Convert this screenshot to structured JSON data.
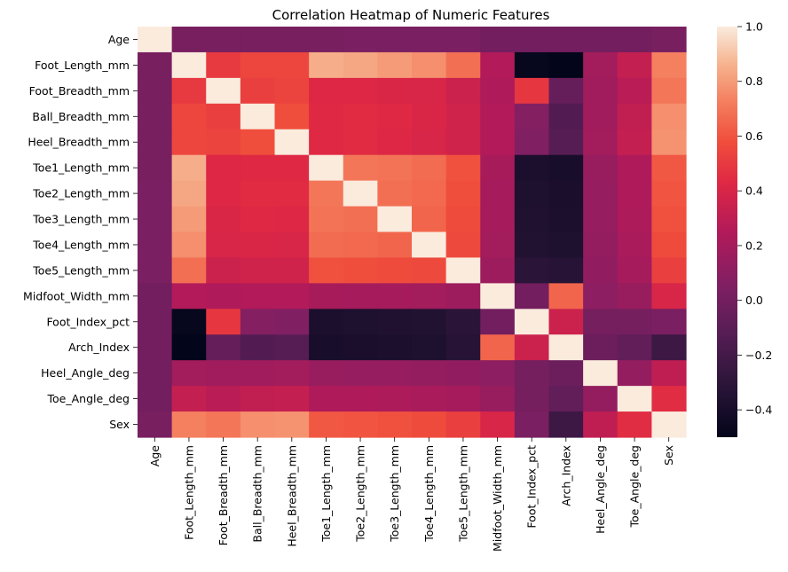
{
  "chart_data": {
    "type": "heatmap",
    "title": "Correlation Heatmap of Numeric Features",
    "xlabel": "",
    "ylabel": "",
    "labels": [
      "Age",
      "Foot_Length_mm",
      "Foot_Breadth_mm",
      "Ball_Breadth_mm",
      "Heel_Breadth_mm",
      "Toe1_Length_mm",
      "Toe2_Length_mm",
      "Toe3_Length_mm",
      "Toe4_Length_mm",
      "Toe5_Length_mm",
      "Midfoot_Width_mm",
      "Foot_Index_pct",
      "Arch_Index",
      "Heel_Angle_deg",
      "Toe_Angle_deg",
      "Sex"
    ],
    "values": [
      [
        1.0,
        0.02,
        0.02,
        0.02,
        0.02,
        0.02,
        0.03,
        0.03,
        0.03,
        0.03,
        0.0,
        0.0,
        0.0,
        0.0,
        0.0,
        0.02
      ],
      [
        0.02,
        1.0,
        0.5,
        0.55,
        0.55,
        0.85,
        0.83,
        0.8,
        0.77,
        0.68,
        0.25,
        -0.48,
        -0.52,
        0.19,
        0.32,
        0.73
      ],
      [
        0.02,
        0.5,
        1.0,
        0.52,
        0.54,
        0.42,
        0.42,
        0.41,
        0.4,
        0.35,
        0.24,
        0.49,
        -0.06,
        0.18,
        0.28,
        0.7
      ],
      [
        0.02,
        0.55,
        0.52,
        1.0,
        0.58,
        0.43,
        0.44,
        0.43,
        0.41,
        0.37,
        0.25,
        0.07,
        -0.14,
        0.18,
        0.31,
        0.77
      ],
      [
        0.02,
        0.55,
        0.54,
        0.58,
        1.0,
        0.43,
        0.44,
        0.42,
        0.4,
        0.37,
        0.25,
        0.06,
        -0.12,
        0.19,
        0.32,
        0.78
      ],
      [
        0.02,
        0.85,
        0.42,
        0.43,
        0.43,
        1.0,
        0.7,
        0.69,
        0.67,
        0.59,
        0.21,
        -0.38,
        -0.4,
        0.15,
        0.24,
        0.61
      ],
      [
        0.03,
        0.83,
        0.42,
        0.44,
        0.44,
        0.7,
        1.0,
        0.68,
        0.66,
        0.58,
        0.2,
        -0.37,
        -0.39,
        0.14,
        0.24,
        0.6
      ],
      [
        0.03,
        0.8,
        0.41,
        0.43,
        0.42,
        0.69,
        0.68,
        1.0,
        0.65,
        0.57,
        0.2,
        -0.36,
        -0.38,
        0.14,
        0.23,
        0.59
      ],
      [
        0.03,
        0.77,
        0.4,
        0.41,
        0.4,
        0.67,
        0.66,
        0.65,
        1.0,
        0.56,
        0.19,
        -0.35,
        -0.37,
        0.13,
        0.22,
        0.57
      ],
      [
        0.03,
        0.68,
        0.35,
        0.37,
        0.37,
        0.59,
        0.58,
        0.57,
        0.56,
        1.0,
        0.17,
        -0.31,
        -0.33,
        0.12,
        0.2,
        0.52
      ],
      [
        0.0,
        0.25,
        0.24,
        0.25,
        0.25,
        0.21,
        0.2,
        0.2,
        0.19,
        0.17,
        1.0,
        0.0,
        0.65,
        0.1,
        0.15,
        0.4
      ],
      [
        0.0,
        -0.48,
        0.49,
        0.07,
        0.06,
        -0.38,
        -0.37,
        -0.36,
        -0.35,
        -0.31,
        0.0,
        1.0,
        0.35,
        0.01,
        0.01,
        0.03
      ],
      [
        0.0,
        -0.52,
        -0.06,
        -0.14,
        -0.12,
        -0.4,
        -0.39,
        -0.38,
        -0.37,
        -0.33,
        0.65,
        0.35,
        1.0,
        -0.03,
        -0.07,
        -0.23
      ],
      [
        0.0,
        0.19,
        0.18,
        0.18,
        0.19,
        0.15,
        0.14,
        0.14,
        0.13,
        0.12,
        0.1,
        0.01,
        -0.03,
        1.0,
        0.13,
        0.3
      ],
      [
        0.0,
        0.32,
        0.28,
        0.31,
        0.32,
        0.24,
        0.24,
        0.23,
        0.22,
        0.2,
        0.15,
        0.01,
        -0.07,
        0.13,
        1.0,
        0.45
      ],
      [
        0.02,
        0.73,
        0.7,
        0.77,
        0.78,
        0.61,
        0.6,
        0.59,
        0.57,
        0.52,
        0.4,
        0.03,
        -0.23,
        0.3,
        0.45,
        1.0
      ]
    ],
    "vmin": -0.5,
    "vmax": 1.0,
    "colormap": "rocket",
    "colorbar_ticks": [
      "1.0",
      "0.8",
      "0.6",
      "0.4",
      "0.2",
      "0.0",
      "−0.2",
      "−0.4"
    ],
    "colorbar_tick_values": [
      1.0,
      0.8,
      0.6,
      0.4,
      0.2,
      0.0,
      -0.2,
      -0.4
    ],
    "colorbar_placement": "right",
    "grid": false
  }
}
